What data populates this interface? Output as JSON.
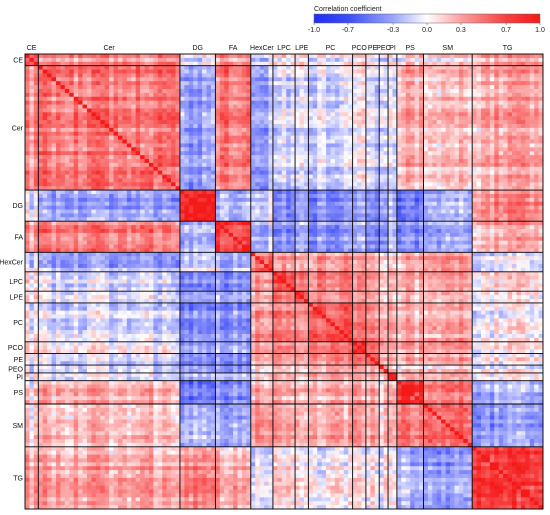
{
  "chart_data": {
    "type": "heatmap",
    "title": "",
    "colorbar": {
      "title": "Correlation coefficient",
      "ticks": [
        -1.0,
        -0.7,
        -0.3,
        0.0,
        0.3,
        0.7,
        1.0
      ],
      "tick_labels": [
        "-1.0",
        "-0.7",
        "-0.3",
        "0.0",
        "0.3",
        "0.7",
        "1.0"
      ],
      "range": [
        -1.0,
        1.0
      ],
      "colors": {
        "negative": "#1f2ff5",
        "zero": "#ffffff",
        "positive": "#f51a1a"
      }
    },
    "groups": [
      {
        "label": "CE",
        "count": 3
      },
      {
        "label": "Cer",
        "count": 32
      },
      {
        "label": "DG",
        "count": 8
      },
      {
        "label": "FA",
        "count": 8
      },
      {
        "label": "HexCer",
        "count": 5
      },
      {
        "label": "LPC",
        "count": 5
      },
      {
        "label": "LPE",
        "count": 3
      },
      {
        "label": "PC",
        "count": 10
      },
      {
        "label": "PCO",
        "count": 3
      },
      {
        "label": "PE",
        "count": 3
      },
      {
        "label": "PEO",
        "count": 2
      },
      {
        "label": "PI",
        "count": 2
      },
      {
        "label": "PS",
        "count": 6
      },
      {
        "label": "SM",
        "count": 11
      },
      {
        "label": "TG",
        "count": 16
      }
    ],
    "block_means": [
      [
        0.6,
        0.4,
        -0.1,
        0.4,
        -0.1,
        0.1,
        0.1,
        0.0,
        0.1,
        0.0,
        0.0,
        0.0,
        0.1,
        0.1,
        0.3
      ],
      [
        0.4,
        0.5,
        -0.4,
        0.5,
        -0.3,
        -0.1,
        -0.1,
        -0.1,
        0.0,
        -0.1,
        0.0,
        -0.1,
        0.3,
        0.2,
        0.3
      ],
      [
        -0.1,
        -0.4,
        0.9,
        -0.3,
        -0.1,
        -0.5,
        -0.4,
        -0.5,
        -0.4,
        -0.5,
        -0.3,
        -0.3,
        -0.6,
        -0.3,
        0.4
      ],
      [
        0.4,
        0.5,
        -0.3,
        0.8,
        -0.2,
        -0.4,
        -0.3,
        -0.4,
        -0.3,
        -0.4,
        -0.3,
        -0.2,
        -0.4,
        -0.3,
        0.3
      ],
      [
        -0.1,
        -0.3,
        -0.1,
        -0.2,
        0.6,
        0.4,
        0.3,
        0.4,
        0.3,
        0.3,
        0.2,
        0.1,
        0.3,
        0.4,
        -0.1
      ],
      [
        0.1,
        -0.1,
        -0.5,
        -0.4,
        0.4,
        0.7,
        0.5,
        0.5,
        0.4,
        0.4,
        0.3,
        0.2,
        0.3,
        0.3,
        0.1
      ],
      [
        0.1,
        -0.1,
        -0.4,
        -0.3,
        0.3,
        0.5,
        0.7,
        0.5,
        0.4,
        0.4,
        0.3,
        0.2,
        0.3,
        0.3,
        0.1
      ],
      [
        0.0,
        -0.1,
        -0.5,
        -0.4,
        0.4,
        0.5,
        0.5,
        0.7,
        0.5,
        0.5,
        0.4,
        0.3,
        0.3,
        0.3,
        0.0
      ],
      [
        0.1,
        0.0,
        -0.4,
        -0.3,
        0.3,
        0.4,
        0.4,
        0.5,
        0.7,
        0.5,
        0.4,
        0.2,
        0.3,
        0.3,
        0.0
      ],
      [
        0.0,
        -0.1,
        -0.5,
        -0.4,
        0.3,
        0.4,
        0.4,
        0.5,
        0.5,
        0.7,
        0.4,
        0.3,
        0.3,
        0.3,
        0.0
      ],
      [
        0.0,
        0.0,
        -0.3,
        -0.3,
        0.2,
        0.3,
        0.3,
        0.4,
        0.4,
        0.4,
        0.7,
        0.2,
        0.2,
        0.2,
        0.0
      ],
      [
        0.0,
        -0.1,
        -0.3,
        -0.2,
        0.1,
        0.2,
        0.2,
        0.3,
        0.2,
        0.3,
        0.2,
        0.8,
        0.2,
        0.2,
        -0.1
      ],
      [
        0.1,
        0.3,
        -0.6,
        -0.4,
        0.3,
        0.3,
        0.3,
        0.3,
        0.3,
        0.3,
        0.2,
        0.2,
        0.9,
        0.5,
        -0.3
      ],
      [
        0.1,
        0.2,
        -0.3,
        -0.3,
        0.4,
        0.3,
        0.3,
        0.3,
        0.3,
        0.3,
        0.2,
        0.2,
        0.5,
        0.6,
        -0.4
      ],
      [
        0.3,
        0.3,
        0.4,
        0.3,
        -0.1,
        0.1,
        0.1,
        0.0,
        0.0,
        0.0,
        0.0,
        -0.1,
        -0.3,
        -0.4,
        0.8
      ]
    ],
    "diagonal": 1.0
  }
}
